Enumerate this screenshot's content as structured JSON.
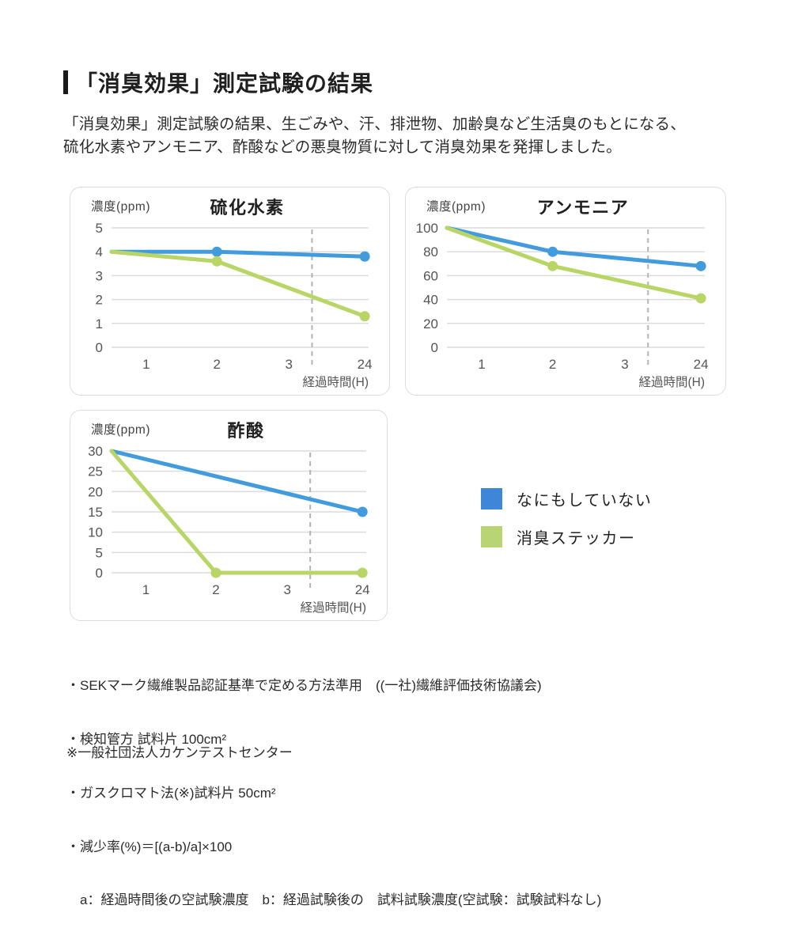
{
  "header": {
    "title": "「消臭効果」測定試験の結果",
    "description": [
      "「消臭効果」測定試験の結果、生ごみや、汗、排泄物、加齢臭など生活臭のもとになる、",
      "硫化水素やアンモニア、酢酸などの悪臭物質に対して消臭効果を発揮しました。"
    ]
  },
  "colors": {
    "blue": "#419bdc",
    "green": "#b8d566",
    "grid": "#dcdcdc",
    "dashed": "#b3b3b3",
    "axis_text": "#555555",
    "panel_border": "#dcdcdc"
  },
  "chart_data": [
    {
      "type": "line",
      "title": "硫化水素",
      "ylabel": "濃度(ppm)",
      "xlabel": "経過時間(H)",
      "ylim": [
        0,
        5
      ],
      "ystep": 1,
      "xticklabels": [
        "1",
        "2",
        "3",
        "24"
      ],
      "axis_break_after_hour": 3,
      "series": [
        {
          "name": "なにもしていない",
          "color": "blue",
          "x_hours": [
            0,
            2,
            24
          ],
          "values": [
            4.0,
            4.0,
            3.8
          ],
          "dots": [
            2,
            24
          ]
        },
        {
          "name": "消臭ステッカー",
          "color": "green",
          "x_hours": [
            0,
            2,
            24
          ],
          "values": [
            4.0,
            3.6,
            1.3
          ],
          "dots": [
            2,
            24
          ]
        }
      ]
    },
    {
      "type": "line",
      "title": "アンモニア",
      "ylabel": "濃度(ppm)",
      "xlabel": "経過時間(H)",
      "ylim": [
        0,
        100
      ],
      "ystep": 20,
      "xticklabels": [
        "1",
        "2",
        "3",
        "24"
      ],
      "axis_break_after_hour": 3,
      "series": [
        {
          "name": "なにもしていない",
          "color": "blue",
          "x_hours": [
            0,
            2,
            24
          ],
          "values": [
            100,
            80,
            68
          ],
          "dots": [
            2,
            24
          ]
        },
        {
          "name": "消臭ステッカー",
          "color": "green",
          "x_hours": [
            0,
            2,
            24
          ],
          "values": [
            100,
            68,
            41
          ],
          "dots": [
            2,
            24
          ]
        }
      ]
    },
    {
      "type": "line",
      "title": "酢酸",
      "ylabel": "濃度(ppm)",
      "xlabel": "経過時間(H)",
      "ylim": [
        0,
        30
      ],
      "ystep": 5,
      "xticklabels": [
        "1",
        "2",
        "3",
        "24"
      ],
      "axis_break_after_hour": 3,
      "series": [
        {
          "name": "なにもしていない",
          "color": "blue",
          "x_hours": [
            0,
            24
          ],
          "values": [
            30,
            15
          ],
          "dots": [
            24
          ]
        },
        {
          "name": "消臭ステッカー",
          "color": "green",
          "x_hours": [
            0,
            2,
            24
          ],
          "values": [
            30,
            0,
            0
          ],
          "dots": [
            2,
            24
          ]
        }
      ]
    }
  ],
  "legend": {
    "items": [
      {
        "label": "なにもしていない",
        "color": "#3d86d8"
      },
      {
        "label": "消臭ステッカー",
        "color": "#b9d573"
      }
    ]
  },
  "footnotes": {
    "lines": [
      "・SEKマーク繊維製品認証基準で定める方法準用　((一社)繊維評価技術協議会)",
      "・検知管方 試料片 100cm²",
      "・ガスクロマト法(※)試料片 50cm²",
      "・減少率(%)＝[(a-b)/a]×100",
      "　a：経過時間後の空試験濃度　b：経過試験後の　試料試験濃度(空試験：試験試料なし)"
    ],
    "org_note": "※一般社団法人カケンテストセンター"
  }
}
